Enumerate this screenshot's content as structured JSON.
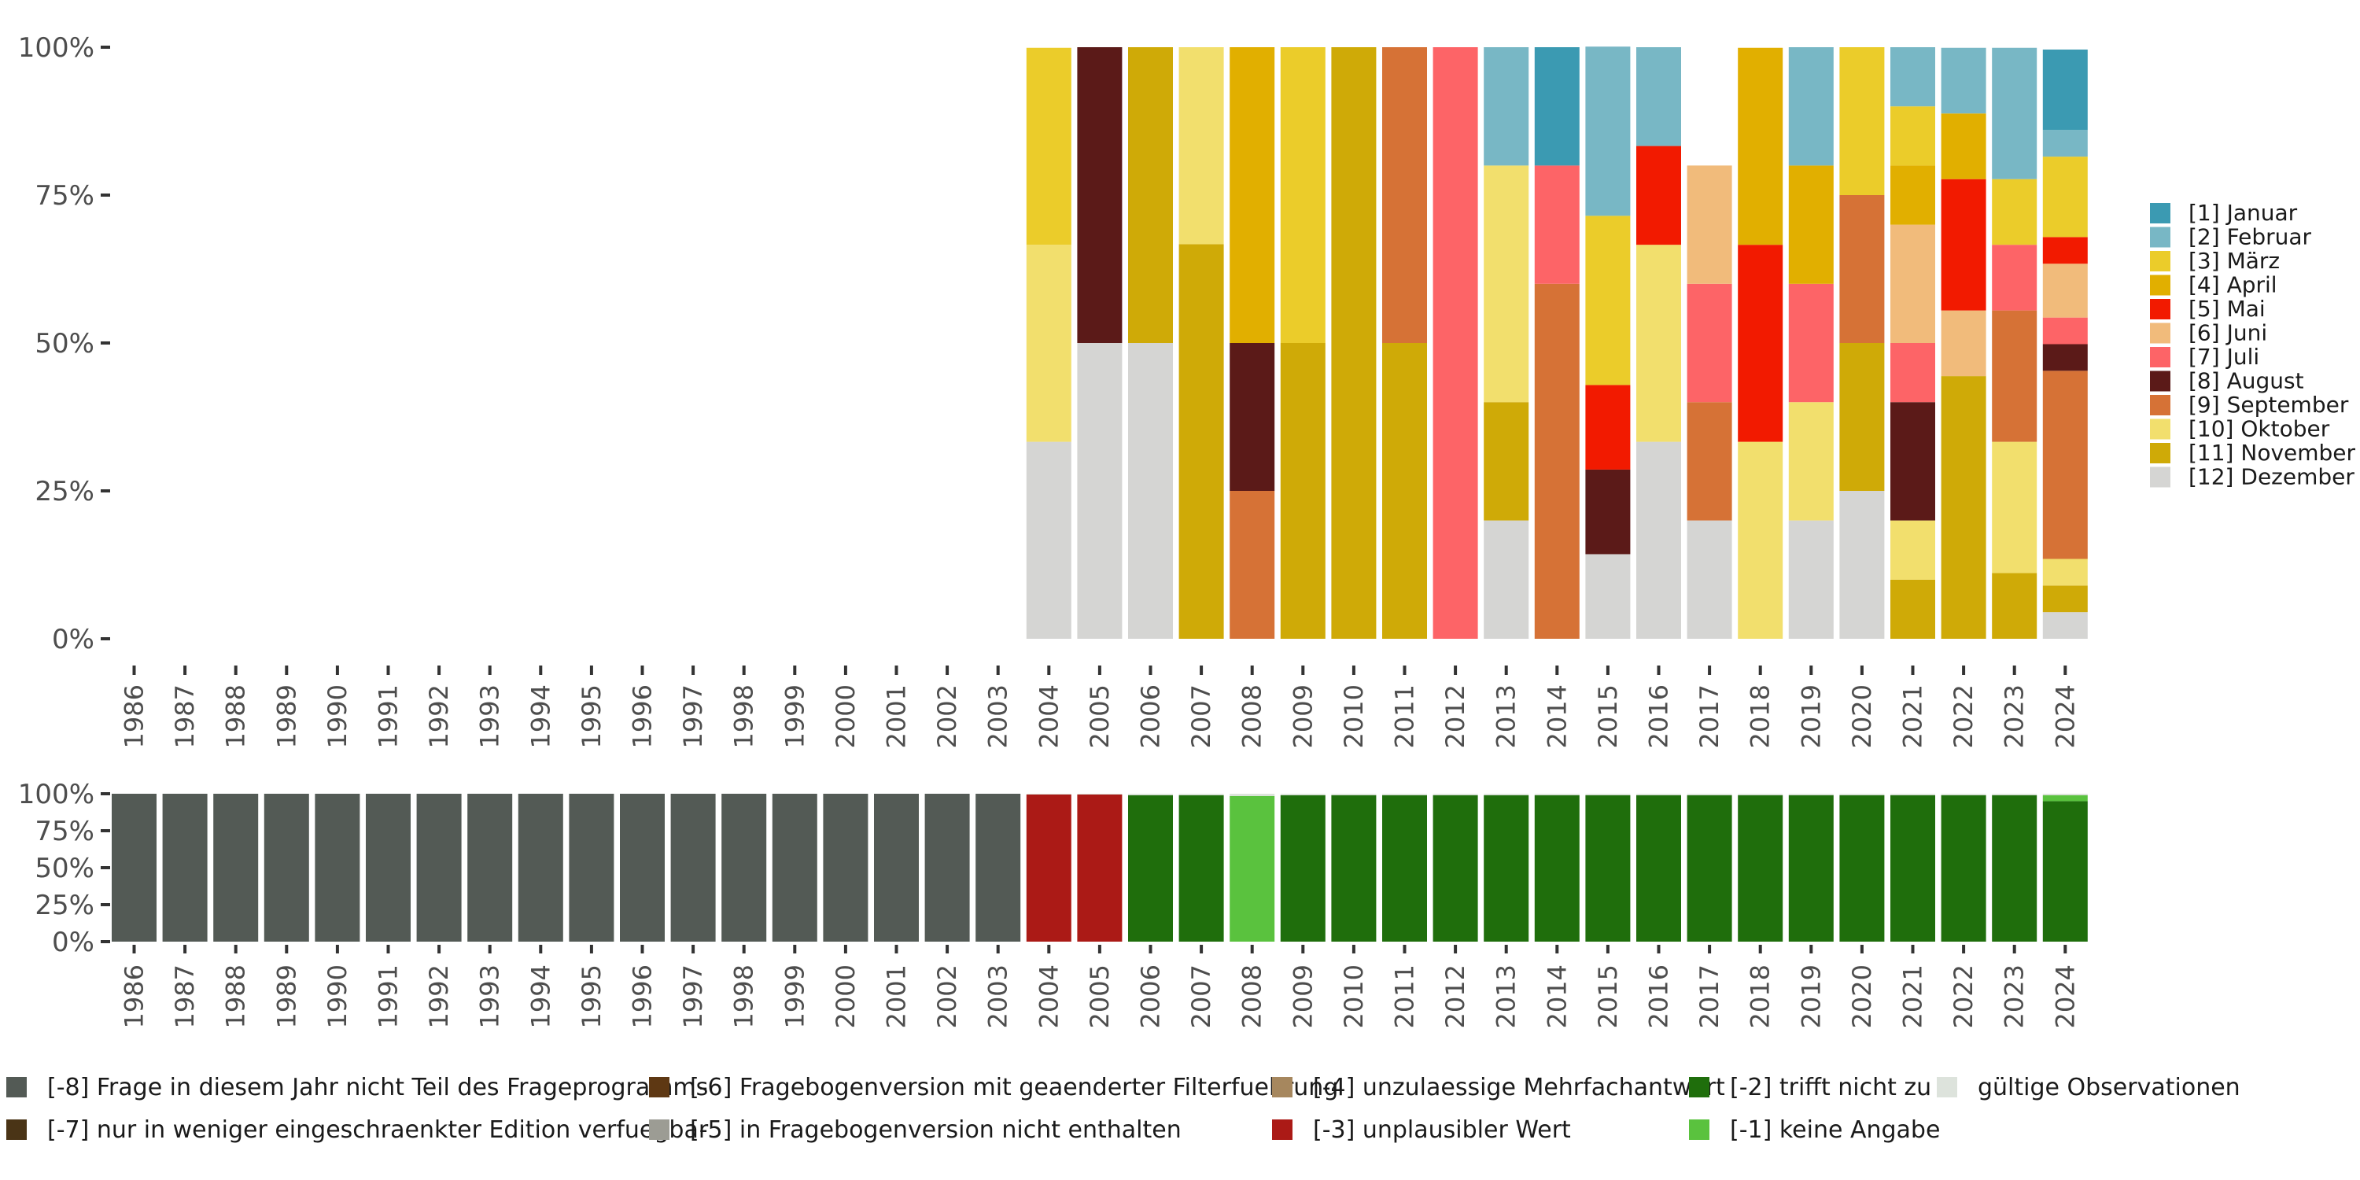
{
  "chart_data": [
    {
      "type": "bar",
      "stacked": true,
      "ylabel": "",
      "xlabel": "",
      "ylim": [
        0,
        1
      ],
      "y_ticks": [
        "0%",
        "25%",
        "50%",
        "75%",
        "100%"
      ],
      "categories": [
        "1986",
        "1987",
        "1988",
        "1989",
        "1990",
        "1991",
        "1992",
        "1993",
        "1994",
        "1995",
        "1996",
        "1997",
        "1998",
        "1999",
        "2000",
        "2001",
        "2002",
        "2003",
        "2004",
        "2005",
        "2006",
        "2007",
        "2008",
        "2009",
        "2010",
        "2011",
        "2012",
        "2013",
        "2014",
        "2015",
        "2016",
        "2017",
        "2018",
        "2019",
        "2020",
        "2021",
        "2022",
        "2023",
        "2024"
      ],
      "legend": [
        {
          "label": "[1] Januar",
          "color": "#3B9AB2"
        },
        {
          "label": "[2] Februar",
          "color": "#78B7C5"
        },
        {
          "label": "[3] März",
          "color": "#EBCC2A"
        },
        {
          "label": "[4] April",
          "color": "#E1AF00"
        },
        {
          "label": "[5] Mai",
          "color": "#F21A00"
        },
        {
          "label": "[6] Juni",
          "color": "#F1BB7B"
        },
        {
          "label": "[7] Juli",
          "color": "#FD6467"
        },
        {
          "label": "[8] August",
          "color": "#5B1A18"
        },
        {
          "label": "[9] September",
          "color": "#D67236"
        },
        {
          "label": "[10] Oktober",
          "color": "#F2DF6D"
        },
        {
          "label": "[11] November",
          "color": "#CFAA07"
        },
        {
          "label": "[12] Dezember",
          "color": "#D5D5D3"
        }
      ],
      "stack_order_bottom_to_top": [
        "[12] Dezember",
        "[11] November",
        "[10] Oktober",
        "[9] September",
        "[8] August",
        "[7] Juli",
        "[6] Juni",
        "[5] Mai",
        "[4] April",
        "[3] März",
        "[2] Februar",
        "[1] Januar"
      ],
      "series": [
        {
          "name": "[12] Dezember",
          "values": [
            0,
            0,
            0,
            0,
            0,
            0,
            0,
            0,
            0,
            0,
            0,
            0,
            0,
            0,
            0,
            0,
            0,
            0,
            0.333,
            0.5,
            0.5,
            0,
            0,
            0,
            0,
            0,
            0,
            0.2,
            0,
            0.143,
            0.333,
            0.2,
            0,
            0.2,
            0.25,
            0,
            0,
            0,
            0.045
          ]
        },
        {
          "name": "[11] November",
          "values": [
            0,
            0,
            0,
            0,
            0,
            0,
            0,
            0,
            0,
            0,
            0,
            0,
            0,
            0,
            0,
            0,
            0,
            0,
            0,
            0,
            0.5,
            0.667,
            0,
            0.5,
            1,
            0.5,
            0,
            0.2,
            0,
            0,
            0,
            0,
            0,
            0,
            0.25,
            0.1,
            0.444,
            0.111,
            0.045
          ]
        },
        {
          "name": "[10] Oktober",
          "values": [
            0,
            0,
            0,
            0,
            0,
            0,
            0,
            0,
            0,
            0,
            0,
            0,
            0,
            0,
            0,
            0,
            0,
            0,
            0.333,
            0,
            0,
            0.333,
            0,
            0,
            0,
            0,
            0,
            0.4,
            0,
            0,
            0.333,
            0,
            0.333,
            0.2,
            0,
            0.1,
            0,
            0.222,
            0.045
          ]
        },
        {
          "name": "[9] September",
          "values": [
            0,
            0,
            0,
            0,
            0,
            0,
            0,
            0,
            0,
            0,
            0,
            0,
            0,
            0,
            0,
            0,
            0,
            0,
            0,
            0,
            0,
            0,
            0.25,
            0,
            0,
            0.5,
            0,
            0,
            0.6,
            0,
            0,
            0.2,
            0,
            0,
            0.25,
            0,
            0,
            0.222,
            0.318
          ]
        },
        {
          "name": "[8] August",
          "values": [
            0,
            0,
            0,
            0,
            0,
            0,
            0,
            0,
            0,
            0,
            0,
            0,
            0,
            0,
            0,
            0,
            0,
            0,
            0,
            0.5,
            0,
            0,
            0.25,
            0,
            0,
            0,
            0,
            0,
            0,
            0.143,
            0,
            0,
            0,
            0,
            0,
            0.2,
            0,
            0,
            0.045
          ]
        },
        {
          "name": "[7] Juli",
          "values": [
            0,
            0,
            0,
            0,
            0,
            0,
            0,
            0,
            0,
            0,
            0,
            0,
            0,
            0,
            0,
            0,
            0,
            0,
            0,
            0,
            0,
            0,
            0,
            0,
            0,
            0,
            1,
            0,
            0.2,
            0,
            0,
            0.2,
            0,
            0.2,
            0,
            0.1,
            0,
            0.111,
            0.045
          ]
        },
        {
          "name": "[6] Juni",
          "values": [
            0,
            0,
            0,
            0,
            0,
            0,
            0,
            0,
            0,
            0,
            0,
            0,
            0,
            0,
            0,
            0,
            0,
            0,
            0,
            0,
            0,
            0,
            0,
            0,
            0,
            0,
            0,
            0,
            0,
            0,
            0,
            0.2,
            0,
            0,
            0,
            0.2,
            0.111,
            0,
            0.091
          ]
        },
        {
          "name": "[5] Mai",
          "values": [
            0,
            0,
            0,
            0,
            0,
            0,
            0,
            0,
            0,
            0,
            0,
            0,
            0,
            0,
            0,
            0,
            0,
            0,
            0,
            0,
            0,
            0,
            0,
            0,
            0,
            0,
            0,
            0,
            0,
            0.143,
            0.167,
            0,
            0.333,
            0,
            0,
            0,
            0.222,
            0,
            0.045
          ]
        },
        {
          "name": "[4] April",
          "values": [
            0,
            0,
            0,
            0,
            0,
            0,
            0,
            0,
            0,
            0,
            0,
            0,
            0,
            0,
            0,
            0,
            0,
            0,
            0,
            0,
            0,
            0,
            0.5,
            0,
            0,
            0,
            0,
            0,
            0,
            0,
            0,
            0,
            0.333,
            0.2,
            0,
            0.1,
            0.111,
            0,
            0
          ]
        },
        {
          "name": "[3] März",
          "values": [
            0,
            0,
            0,
            0,
            0,
            0,
            0,
            0,
            0,
            0,
            0,
            0,
            0,
            0,
            0,
            0,
            0,
            0,
            0.333,
            0,
            0,
            0,
            0,
            0.5,
            0,
            0,
            0,
            0,
            0,
            0.286,
            0,
            0,
            0,
            0,
            0.25,
            0.1,
            0,
            0.111,
            0.136
          ]
        },
        {
          "name": "[2] Februar",
          "values": [
            0,
            0,
            0,
            0,
            0,
            0,
            0,
            0,
            0,
            0,
            0,
            0,
            0,
            0,
            0,
            0,
            0,
            0,
            0,
            0,
            0,
            0,
            0,
            0,
            0,
            0,
            0,
            0.2,
            0,
            0.286,
            0.167,
            0,
            0,
            0.2,
            0,
            0.1,
            0.111,
            0.222,
            0.045
          ]
        },
        {
          "name": "[1] Januar",
          "values": [
            0,
            0,
            0,
            0,
            0,
            0,
            0,
            0,
            0,
            0,
            0,
            0,
            0,
            0,
            0,
            0,
            0,
            0,
            0,
            0,
            0,
            0,
            0,
            0,
            0,
            0,
            0,
            0,
            0.2,
            0,
            0,
            0,
            0,
            0,
            0,
            0,
            0,
            0,
            0.136
          ]
        }
      ]
    },
    {
      "type": "bar",
      "stacked": true,
      "ylabel": "",
      "xlabel": "",
      "ylim": [
        0,
        1
      ],
      "y_ticks": [
        "0%",
        "25%",
        "50%",
        "75%",
        "100%"
      ],
      "categories": [
        "1986",
        "1987",
        "1988",
        "1989",
        "1990",
        "1991",
        "1992",
        "1993",
        "1994",
        "1995",
        "1996",
        "1997",
        "1998",
        "1999",
        "2000",
        "2001",
        "2002",
        "2003",
        "2004",
        "2005",
        "2006",
        "2007",
        "2008",
        "2009",
        "2010",
        "2011",
        "2012",
        "2013",
        "2014",
        "2015",
        "2016",
        "2017",
        "2018",
        "2019",
        "2020",
        "2021",
        "2022",
        "2023",
        "2024"
      ],
      "legend": [
        {
          "label": "[-8] Frage in diesem Jahr nicht Teil des Frageprogramms",
          "color": "#535A55"
        },
        {
          "label": "[-7] nur in weniger eingeschraenkter Edition verfuegbar",
          "color": "#4A3416"
        },
        {
          "label": "[-6] Fragebogenversion mit geaenderter Filterfuehrung",
          "color": "#5E3813"
        },
        {
          "label": "[-5] in Fragebogenversion nicht enthalten",
          "color": "#9C9C94"
        },
        {
          "label": "[-4] unzulaessige Mehrfachantwort",
          "color": "#A6875E"
        },
        {
          "label": "[-3] unplausibler Wert",
          "color": "#AB1A16"
        },
        {
          "label": "[-2] trifft nicht zu",
          "color": "#1F6E0C"
        },
        {
          "label": "[-1] keine Angabe",
          "color": "#5AC23E"
        },
        {
          "label": "gültige Observationen",
          "color": "#DDE3DC"
        }
      ],
      "series": [
        {
          "name": "[-8] Frage in diesem Jahr nicht Teil des Frageprogramms",
          "values": [
            1,
            1,
            1,
            1,
            1,
            1,
            1,
            1,
            1,
            1,
            1,
            1,
            1,
            1,
            1,
            1,
            1,
            1,
            0,
            0,
            0,
            0,
            0,
            0,
            0,
            0,
            0,
            0,
            0,
            0,
            0,
            0,
            0,
            0,
            0,
            0,
            0,
            0,
            0
          ]
        },
        {
          "name": "[-3] unplausibler Wert",
          "values": [
            0,
            0,
            0,
            0,
            0,
            0,
            0,
            0,
            0,
            0,
            0,
            0,
            0,
            0,
            0,
            0,
            0,
            0,
            0.995,
            0.995,
            0,
            0,
            0,
            0,
            0,
            0,
            0,
            0,
            0,
            0,
            0,
            0,
            0,
            0,
            0,
            0,
            0,
            0,
            0
          ]
        },
        {
          "name": "[-2] trifft nicht zu",
          "values": [
            0,
            0,
            0,
            0,
            0,
            0,
            0,
            0,
            0,
            0,
            0,
            0,
            0,
            0,
            0,
            0,
            0,
            0,
            0,
            0,
            0.99,
            0.99,
            0,
            0.99,
            0.99,
            0.99,
            0.99,
            0.99,
            0.99,
            0.99,
            0.99,
            0.99,
            0.99,
            0.99,
            0.99,
            0.99,
            0.99,
            0.99,
            0.95
          ]
        },
        {
          "name": "[-1] keine Angabe",
          "values": [
            0,
            0,
            0,
            0,
            0,
            0,
            0,
            0,
            0,
            0,
            0,
            0,
            0,
            0,
            0,
            0,
            0,
            0,
            0,
            0,
            0,
            0,
            0.985,
            0,
            0,
            0,
            0,
            0,
            0,
            0,
            0,
            0,
            0,
            0,
            0,
            0,
            0,
            0,
            0.04
          ]
        },
        {
          "name": "gültige Observationen",
          "values": [
            0,
            0,
            0,
            0,
            0,
            0,
            0,
            0,
            0,
            0,
            0,
            0,
            0,
            0,
            0,
            0,
            0,
            0,
            0.005,
            0.005,
            0.01,
            0.01,
            0.015,
            0.01,
            0.01,
            0.01,
            0.01,
            0.01,
            0.01,
            0.01,
            0.01,
            0.01,
            0.01,
            0.01,
            0.01,
            0.01,
            0.01,
            0.01,
            0.01
          ]
        }
      ]
    }
  ]
}
